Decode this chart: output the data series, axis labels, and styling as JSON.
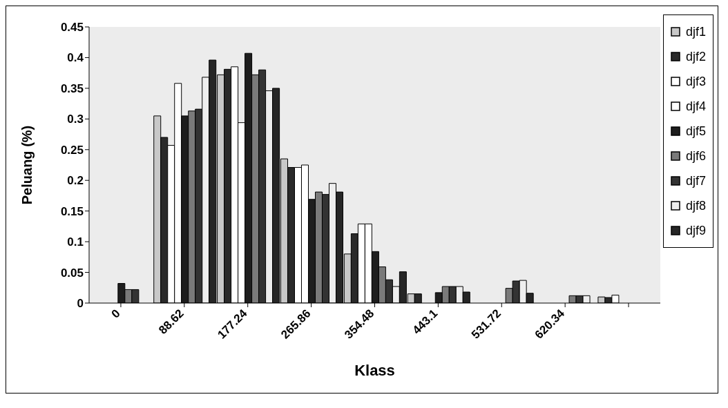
{
  "chart_data": {
    "type": "bar",
    "xlabel": "Klass",
    "ylabel": "Peluang (%)",
    "categories": [
      "0",
      "88.62",
      "177.24",
      "265.86",
      "354.48",
      "443.1",
      "531.72",
      "620.34",
      null
    ],
    "series": [
      {
        "name": "djf1",
        "color": "#c8c8c8",
        "values": [
          null,
          0.305,
          0.372,
          0.235,
          0.08,
          0.015,
          null,
          null,
          0.01
        ]
      },
      {
        "name": "djf2",
        "color": "#2a2a2a",
        "values": [
          null,
          0.27,
          0.381,
          0.221,
          0.113,
          0.015,
          null,
          null,
          0.009
        ]
      },
      {
        "name": "djf3",
        "color": "#ffffff",
        "values": [
          null,
          0.257,
          0.385,
          0.221,
          0.129,
          null,
          null,
          null,
          0.013
        ]
      },
      {
        "name": "djf4",
        "color": "#ffffff",
        "values": [
          null,
          0.358,
          0.294,
          0.225,
          0.129,
          null,
          null,
          null,
          null
        ]
      },
      {
        "name": "djf5",
        "color": "#1e1e1e",
        "values": [
          0.032,
          0.305,
          0.407,
          0.169,
          0.084,
          0.017,
          null,
          null,
          null
        ]
      },
      {
        "name": "djf6",
        "color": "#7a7a7a",
        "values": [
          0.022,
          0.313,
          0.372,
          0.181,
          0.059,
          0.027,
          0.024,
          0.012,
          null
        ]
      },
      {
        "name": "djf7",
        "color": "#333333",
        "values": [
          0.022,
          0.316,
          0.38,
          0.177,
          0.038,
          0.027,
          0.036,
          0.012,
          null
        ]
      },
      {
        "name": "djf8",
        "color": "#eeeeee",
        "values": [
          null,
          0.368,
          0.346,
          0.195,
          0.027,
          0.027,
          0.037,
          0.012,
          null
        ]
      },
      {
        "name": "djf9",
        "color": "#262626",
        "values": [
          null,
          0.396,
          0.35,
          0.181,
          0.051,
          0.018,
          0.016,
          null,
          null
        ]
      }
    ],
    "ylim": [
      0,
      0.45
    ],
    "yticks": [
      0,
      0.05,
      0.1,
      0.15,
      0.2,
      0.25,
      0.3,
      0.35,
      0.4,
      0.45
    ],
    "grid": false,
    "legend": "right"
  }
}
